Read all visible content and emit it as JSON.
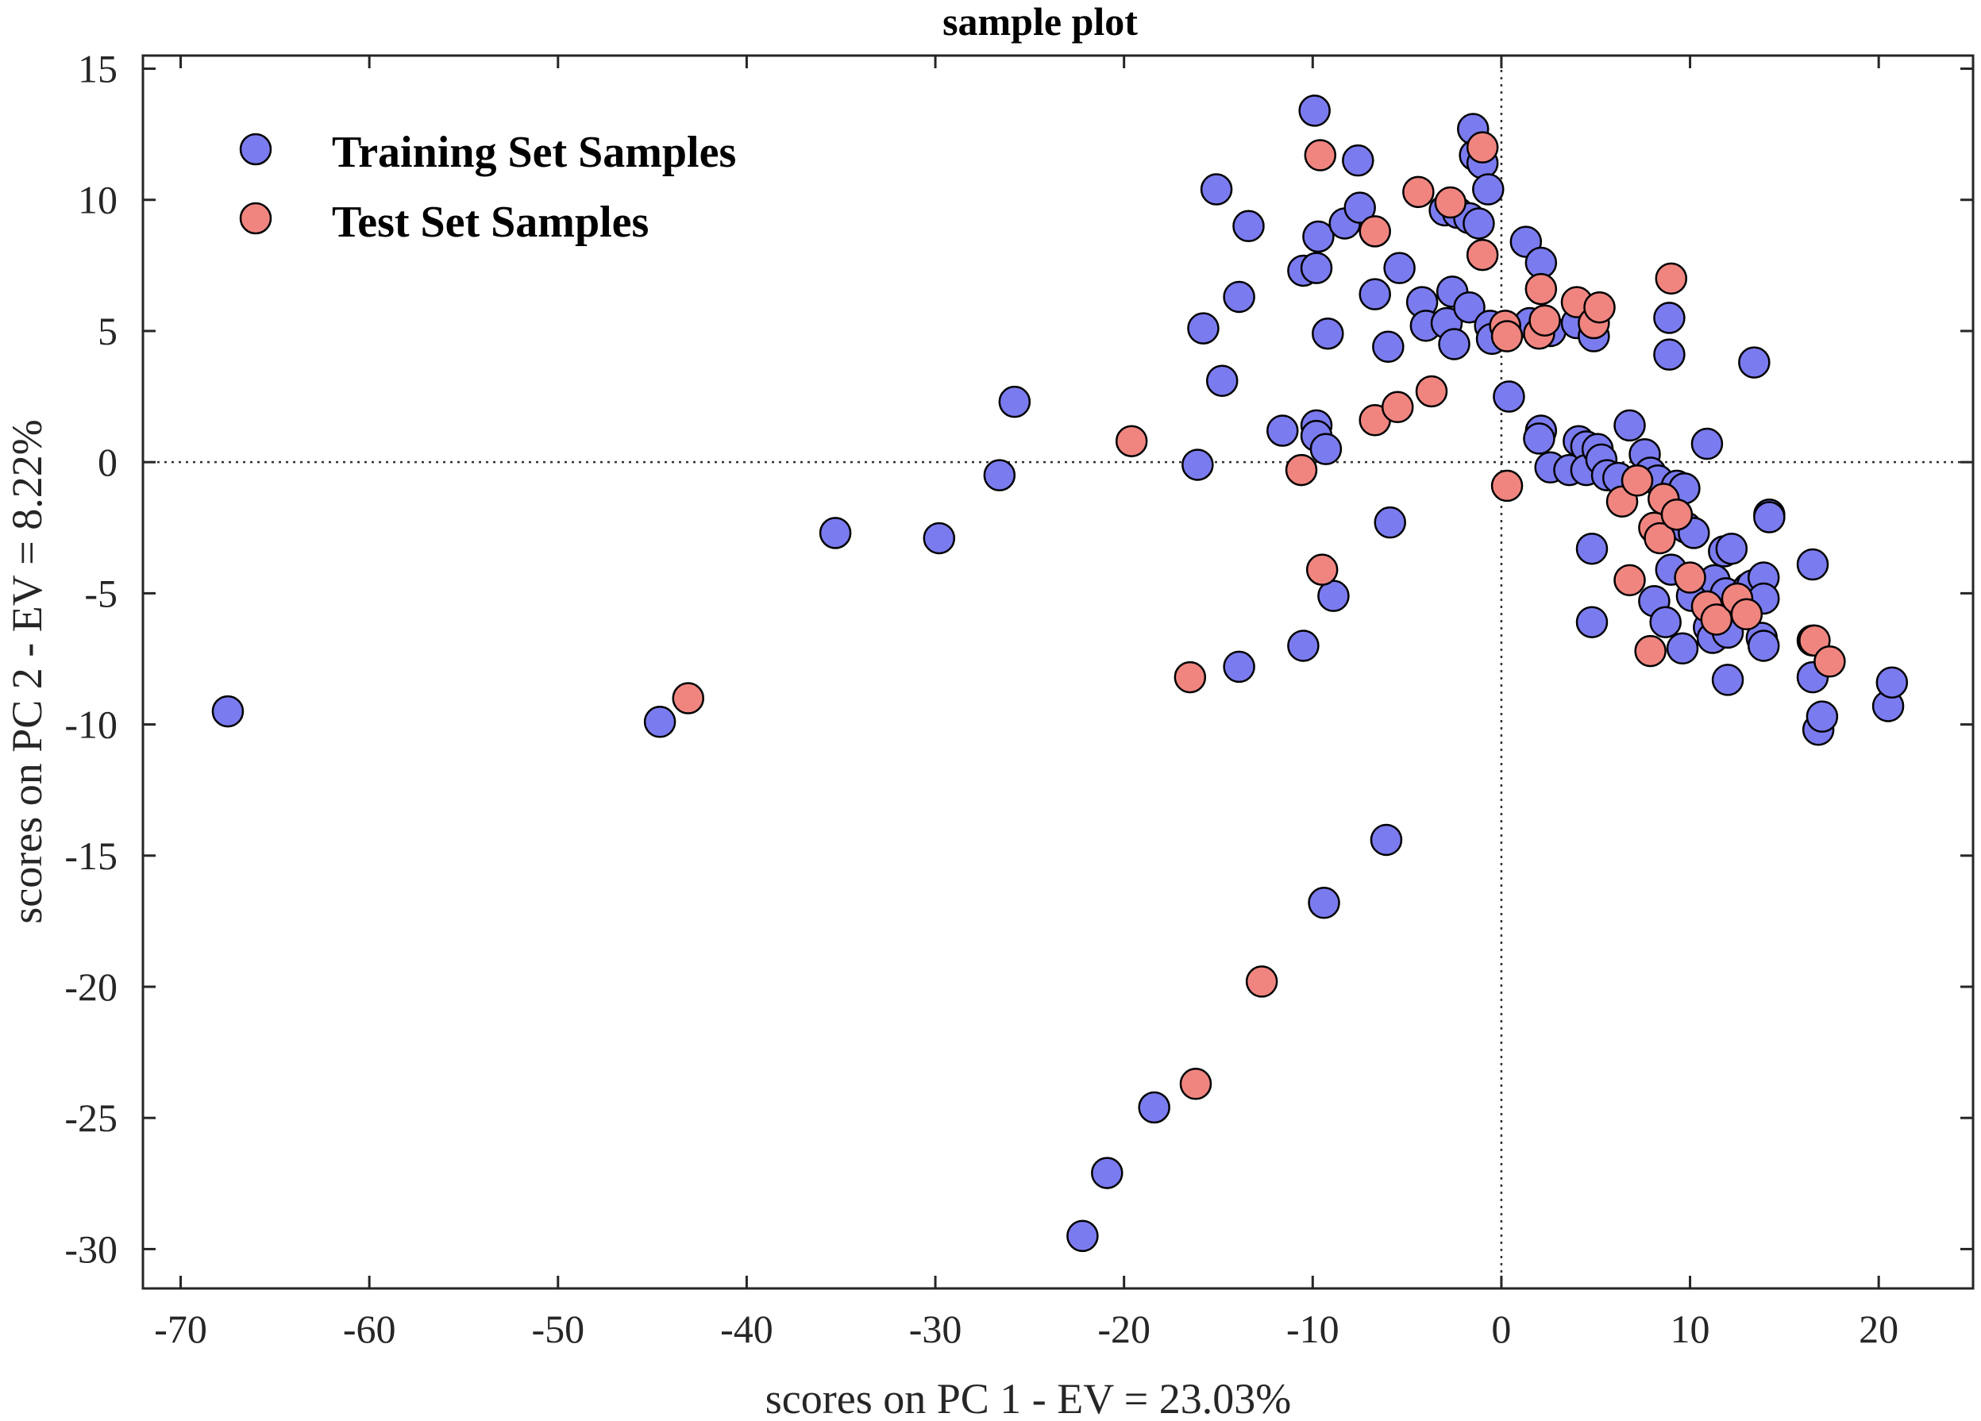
{
  "chart_data": {
    "type": "scatter",
    "title": "sample plot",
    "xlabel": "scores on PC 1 - EV = 23.03%",
    "ylabel": "scores on PC 2 - EV = 8.22%",
    "xlim": [
      -72,
      25
    ],
    "ylim": [
      -31.5,
      15.5
    ],
    "xticks": [
      -70,
      -60,
      -50,
      -40,
      -30,
      -20,
      -10,
      0,
      10,
      20
    ],
    "yticks": [
      15,
      10,
      5,
      0,
      -5,
      -10,
      -15,
      -20,
      -25,
      -30
    ],
    "xtick_labels": [
      "-70",
      "-60",
      "-50",
      "-40",
      "-30",
      "-20",
      "-10",
      "0",
      "10",
      "20"
    ],
    "ytick_labels": [
      "15",
      "10",
      "5",
      "0",
      "-5",
      "-10",
      "-15",
      "-20",
      "-25",
      "-30"
    ],
    "reference_lines": {
      "x": 0,
      "y": 0
    },
    "grid": false,
    "legend_position": "top-left",
    "series": [
      {
        "name": "Training Set Samples",
        "color": "#7b7bf0",
        "points": [
          [
            -67.5,
            -9.5
          ],
          [
            -44.6,
            -9.9
          ],
          [
            -35.3,
            -2.7
          ],
          [
            -29.8,
            -2.9
          ],
          [
            -26.6,
            -0.5
          ],
          [
            -25.8,
            2.3
          ],
          [
            -22.2,
            -29.5
          ],
          [
            -20.9,
            -27.1
          ],
          [
            -18.4,
            -24.6
          ],
          [
            -16.1,
            -0.1
          ],
          [
            -15.8,
            5.1
          ],
          [
            -15.1,
            10.4
          ],
          [
            -14.8,
            3.1
          ],
          [
            -13.9,
            6.3
          ],
          [
            -13.9,
            -7.8
          ],
          [
            -13.4,
            9.0
          ],
          [
            -11.6,
            1.2
          ],
          [
            -10.5,
            7.3
          ],
          [
            -10.5,
            -7.0
          ],
          [
            -9.9,
            13.4
          ],
          [
            -9.8,
            1.4
          ],
          [
            -9.8,
            1.0
          ],
          [
            -9.8,
            7.4
          ],
          [
            -9.7,
            8.6
          ],
          [
            -9.4,
            -16.8
          ],
          [
            -9.3,
            0.5
          ],
          [
            -9.2,
            4.9
          ],
          [
            -8.9,
            -5.1
          ],
          [
            -8.3,
            9.1
          ],
          [
            -7.6,
            11.5
          ],
          [
            -7.5,
            9.7
          ],
          [
            -6.7,
            6.4
          ],
          [
            -6.1,
            -14.4
          ],
          [
            -6.0,
            4.4
          ],
          [
            -5.9,
            -2.3
          ],
          [
            -5.4,
            7.4
          ],
          [
            -4.2,
            6.1
          ],
          [
            -4.0,
            5.2
          ],
          [
            -3.0,
            9.6
          ],
          [
            -2.9,
            5.3
          ],
          [
            -2.6,
            6.5
          ],
          [
            -2.5,
            4.5
          ],
          [
            -2.3,
            9.5
          ],
          [
            -1.7,
            9.3
          ],
          [
            -1.7,
            5.9
          ],
          [
            -1.5,
            12.7
          ],
          [
            -1.4,
            11.7
          ],
          [
            -1.2,
            9.1
          ],
          [
            -1.0,
            11.4
          ],
          [
            -0.7,
            10.4
          ],
          [
            -0.6,
            5.2
          ],
          [
            -0.5,
            4.7
          ],
          [
            0.4,
            2.5
          ],
          [
            1.3,
            8.4
          ],
          [
            1.5,
            5.3
          ],
          [
            2.1,
            7.6
          ],
          [
            2.1,
            1.2
          ],
          [
            2.0,
            0.9
          ],
          [
            2.6,
            -0.2
          ],
          [
            2.6,
            5.0
          ],
          [
            3.6,
            -0.3
          ],
          [
            4.0,
            5.3
          ],
          [
            4.1,
            0.8
          ],
          [
            4.5,
            0.6
          ],
          [
            4.5,
            -0.3
          ],
          [
            4.8,
            -3.3
          ],
          [
            4.8,
            -6.1
          ],
          [
            4.9,
            4.8
          ],
          [
            5.1,
            0.5
          ],
          [
            5.3,
            0.1
          ],
          [
            5.6,
            -0.5
          ],
          [
            6.2,
            -0.6
          ],
          [
            6.8,
            1.4
          ],
          [
            7.2,
            -0.7
          ],
          [
            7.6,
            0.3
          ],
          [
            7.9,
            -0.4
          ],
          [
            8.1,
            -5.3
          ],
          [
            8.3,
            -0.7
          ],
          [
            8.7,
            -6.1
          ],
          [
            8.9,
            5.5
          ],
          [
            8.9,
            4.1
          ],
          [
            9.0,
            -4.1
          ],
          [
            9.3,
            -0.9
          ],
          [
            9.6,
            -7.1
          ],
          [
            9.7,
            -1.0
          ],
          [
            9.8,
            -2.5
          ],
          [
            10.1,
            -5.1
          ],
          [
            10.2,
            -2.7
          ],
          [
            10.9,
            0.7
          ],
          [
            11.0,
            -6.3
          ],
          [
            11.2,
            -6.7
          ],
          [
            11.3,
            -4.5
          ],
          [
            11.8,
            -3.4
          ],
          [
            11.9,
            -5.0
          ],
          [
            12.0,
            -6.5
          ],
          [
            12.0,
            -8.3
          ],
          [
            12.2,
            -3.3
          ],
          [
            12.8,
            -5.2
          ],
          [
            13.1,
            -4.8
          ],
          [
            13.3,
            -4.7
          ],
          [
            13.4,
            3.8
          ],
          [
            13.8,
            -6.7
          ],
          [
            13.9,
            -7.0
          ],
          [
            13.9,
            -4.4
          ],
          [
            13.9,
            -5.2
          ],
          [
            14.2,
            -2.0
          ],
          [
            14.2,
            -2.1
          ],
          [
            16.5,
            -3.9
          ],
          [
            16.5,
            -6.8
          ],
          [
            16.5,
            -8.2
          ],
          [
            16.8,
            -10.2
          ],
          [
            17.0,
            -9.7
          ],
          [
            20.5,
            -9.3
          ],
          [
            20.7,
            -8.4
          ]
        ]
      },
      {
        "name": "Test Set Samples",
        "color": "#f08580",
        "points": [
          [
            -43.1,
            -9.0
          ],
          [
            -19.6,
            0.8
          ],
          [
            -16.5,
            -8.2
          ],
          [
            -16.2,
            -23.7
          ],
          [
            -12.7,
            -19.8
          ],
          [
            -10.6,
            -0.3
          ],
          [
            -9.6,
            11.7
          ],
          [
            -9.5,
            -4.1
          ],
          [
            -6.7,
            8.8
          ],
          [
            -6.7,
            1.6
          ],
          [
            -5.5,
            2.1
          ],
          [
            -4.4,
            10.3
          ],
          [
            -3.7,
            2.7
          ],
          [
            -2.7,
            9.9
          ],
          [
            -1.0,
            12.0
          ],
          [
            -1.0,
            7.9
          ],
          [
            0.2,
            5.2
          ],
          [
            0.3,
            4.8
          ],
          [
            0.3,
            -0.9
          ],
          [
            2.0,
            4.9
          ],
          [
            2.1,
            6.6
          ],
          [
            2.3,
            5.4
          ],
          [
            4.0,
            6.1
          ],
          [
            4.9,
            5.3
          ],
          [
            5.2,
            5.9
          ],
          [
            6.4,
            -1.5
          ],
          [
            6.8,
            -4.5
          ],
          [
            7.2,
            -0.7
          ],
          [
            7.9,
            -7.2
          ],
          [
            8.1,
            -2.5
          ],
          [
            8.4,
            -2.9
          ],
          [
            8.6,
            -1.4
          ],
          [
            9.0,
            7.0
          ],
          [
            9.3,
            -2.0
          ],
          [
            10.0,
            -4.4
          ],
          [
            10.9,
            -5.5
          ],
          [
            11.4,
            -6.0
          ],
          [
            12.5,
            -5.2
          ],
          [
            13.0,
            -5.8
          ],
          [
            16.6,
            -6.8
          ],
          [
            17.4,
            -7.6
          ]
        ]
      }
    ]
  }
}
